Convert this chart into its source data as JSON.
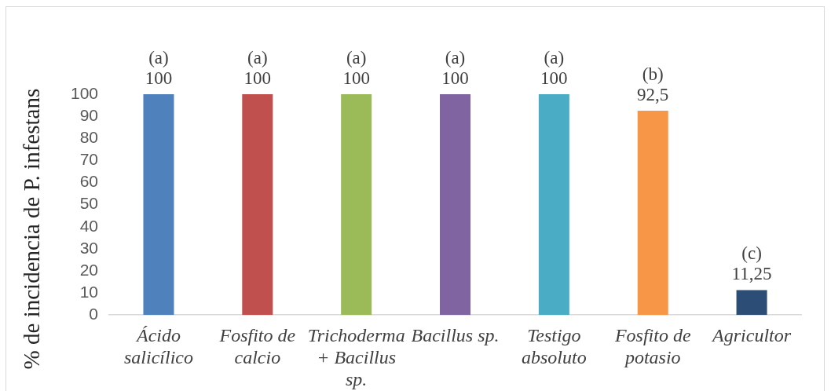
{
  "chart_data": {
    "type": "bar",
    "ylabel": "% de incidencia de P. infestans",
    "categories": [
      "Ácido salicílico",
      "Fosfito de calcio",
      "Trichoderma + Bacillus sp.",
      "Bacillus sp.",
      "Testigo absoluto",
      "Fosfito de potasio",
      "Agricultor"
    ],
    "values": [
      100,
      100,
      100,
      100,
      100,
      92.5,
      11.25
    ],
    "colors": [
      "#4f81bd",
      "#c0504d",
      "#9bbb59",
      "#8064a2",
      "#4bacc6",
      "#f79646",
      "#2c4d75"
    ],
    "value_labels": [
      "(a)\n100",
      "(a)\n100",
      "(a)\n100",
      "(a)\n100",
      "(a)\n100",
      "(b)\n92,5",
      "(c)\n11,25"
    ],
    "ylim": [
      0,
      100
    ],
    "yticks": [
      0,
      10,
      20,
      30,
      40,
      50,
      60,
      70,
      80,
      90,
      100
    ]
  }
}
